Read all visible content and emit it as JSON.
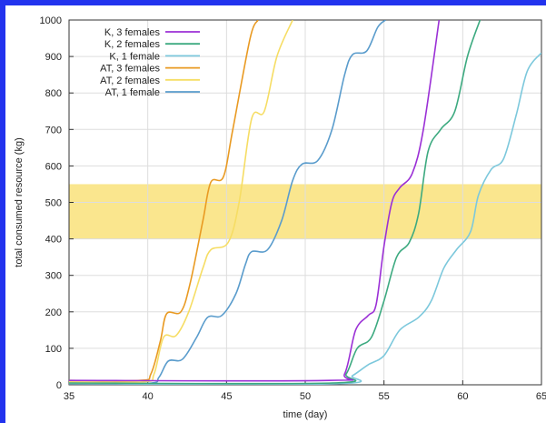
{
  "chart_data": {
    "type": "line",
    "title": "",
    "xlabel": "time (day)",
    "ylabel": "total consumed resource (kg)",
    "xlim": [
      35,
      65
    ],
    "ylim": [
      0,
      1000
    ],
    "x_ticks": [
      35,
      40,
      45,
      50,
      55,
      60,
      65
    ],
    "y_ticks": [
      0,
      100,
      200,
      300,
      400,
      500,
      600,
      700,
      800,
      900,
      1000
    ],
    "grid": true,
    "legend_position": "top-left",
    "shaded_band": {
      "y_min": 400,
      "y_max": 550,
      "color": "#f9e27a"
    },
    "series": [
      {
        "name": "K, 3 females",
        "color": "#9b30d6",
        "points": [
          [
            35,
            12
          ],
          [
            51.5,
            12
          ],
          [
            52.5,
            30
          ],
          [
            53.2,
            150
          ],
          [
            54,
            190
          ],
          [
            54.5,
            220
          ],
          [
            55,
            380
          ],
          [
            55.5,
            500
          ],
          [
            56,
            540
          ],
          [
            56.8,
            580
          ],
          [
            57.5,
            700
          ],
          [
            58.5,
            1000
          ]
        ]
      },
      {
        "name": "K, 2 females",
        "color": "#3daa80",
        "points": [
          [
            35,
            5
          ],
          [
            51.7,
            5
          ],
          [
            52.6,
            30
          ],
          [
            53.3,
            100
          ],
          [
            54.2,
            130
          ],
          [
            55,
            230
          ],
          [
            55.8,
            350
          ],
          [
            56.6,
            390
          ],
          [
            57.2,
            470
          ],
          [
            57.8,
            640
          ],
          [
            58.6,
            700
          ],
          [
            59.5,
            750
          ],
          [
            60.3,
            900
          ],
          [
            61.1,
            1000
          ]
        ]
      },
      {
        "name": "K, 1 female",
        "color": "#7cc8dc",
        "points": [
          [
            35,
            3
          ],
          [
            52,
            3
          ],
          [
            53,
            25
          ],
          [
            54,
            55
          ],
          [
            55,
            80
          ],
          [
            56,
            150
          ],
          [
            57.2,
            185
          ],
          [
            58,
            230
          ],
          [
            58.8,
            320
          ],
          [
            59.6,
            370
          ],
          [
            60.5,
            420
          ],
          [
            61,
            520
          ],
          [
            61.8,
            590
          ],
          [
            62.6,
            620
          ],
          [
            63.4,
            740
          ],
          [
            64.1,
            860
          ],
          [
            65,
            910
          ]
        ]
      },
      {
        "name": "AT, 3 females",
        "color": "#e99a22",
        "points": [
          [
            35,
            12
          ],
          [
            39.5,
            12
          ],
          [
            40.2,
            30
          ],
          [
            40.8,
            120
          ],
          [
            41.2,
            195
          ],
          [
            42.1,
            200
          ],
          [
            42.7,
            280
          ],
          [
            43.5,
            450
          ],
          [
            44,
            555
          ],
          [
            44.8,
            570
          ],
          [
            45.4,
            700
          ],
          [
            46.5,
            950
          ],
          [
            47,
            1000
          ]
        ]
      },
      {
        "name": "AT, 2 females",
        "color": "#f6dd64",
        "points": [
          [
            35,
            8
          ],
          [
            39.7,
            8
          ],
          [
            40.4,
            30
          ],
          [
            41,
            130
          ],
          [
            41.8,
            135
          ],
          [
            42.6,
            200
          ],
          [
            43.5,
            320
          ],
          [
            44,
            370
          ],
          [
            45.1,
            390
          ],
          [
            45.8,
            500
          ],
          [
            46.6,
            730
          ],
          [
            47.4,
            750
          ],
          [
            48.2,
            900
          ],
          [
            49.2,
            1000
          ]
        ]
      },
      {
        "name": "AT, 1 female",
        "color": "#5a9ccc",
        "points": [
          [
            35,
            4
          ],
          [
            40,
            4
          ],
          [
            40.7,
            20
          ],
          [
            41.3,
            65
          ],
          [
            42.2,
            70
          ],
          [
            43.1,
            130
          ],
          [
            43.8,
            185
          ],
          [
            44.7,
            190
          ],
          [
            45.6,
            250
          ],
          [
            46.2,
            330
          ],
          [
            46.6,
            365
          ],
          [
            47.6,
            370
          ],
          [
            48.5,
            450
          ],
          [
            49.2,
            560
          ],
          [
            49.8,
            605
          ],
          [
            50.8,
            615
          ],
          [
            51.7,
            700
          ],
          [
            52.5,
            850
          ],
          [
            53,
            905
          ],
          [
            53.9,
            915
          ],
          [
            54.6,
            980
          ],
          [
            55.1,
            1000
          ]
        ]
      }
    ]
  }
}
